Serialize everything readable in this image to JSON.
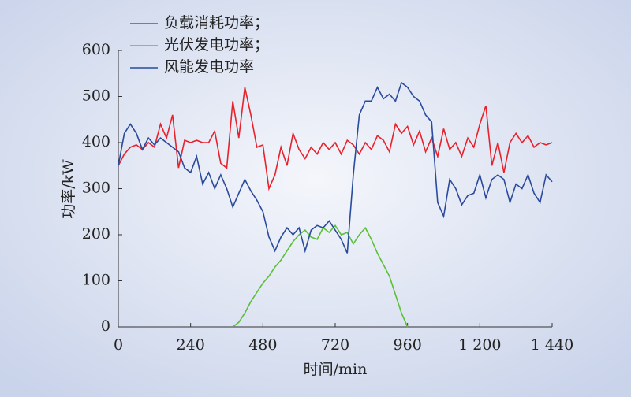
{
  "chart_data": {
    "type": "line",
    "x": [
      0,
      20,
      40,
      60,
      80,
      100,
      120,
      140,
      160,
      180,
      200,
      220,
      240,
      260,
      280,
      300,
      320,
      340,
      360,
      380,
      400,
      420,
      440,
      460,
      480,
      500,
      520,
      540,
      560,
      580,
      600,
      620,
      640,
      660,
      680,
      700,
      720,
      740,
      760,
      780,
      800,
      820,
      840,
      860,
      880,
      900,
      920,
      940,
      960,
      980,
      1000,
      1020,
      1040,
      1060,
      1080,
      1100,
      1120,
      1140,
      1160,
      1180,
      1200,
      1220,
      1240,
      1260,
      1280,
      1300,
      1320,
      1340,
      1360,
      1380,
      1400,
      1420,
      1440
    ],
    "series": [
      {
        "name": "负载消耗功率；",
        "color": "#e8212b",
        "values": [
          350,
          375,
          390,
          395,
          385,
          400,
          390,
          440,
          410,
          460,
          345,
          405,
          400,
          405,
          400,
          400,
          425,
          355,
          345,
          490,
          410,
          520,
          460,
          390,
          395,
          300,
          330,
          390,
          350,
          420,
          385,
          365,
          390,
          375,
          400,
          385,
          400,
          375,
          405,
          395,
          375,
          400,
          385,
          415,
          405,
          380,
          440,
          420,
          435,
          395,
          425,
          380,
          410,
          370,
          430,
          385,
          400,
          370,
          410,
          390,
          440,
          480,
          350,
          400,
          335,
          400,
          420,
          400,
          415,
          390,
          400,
          395,
          400
        ]
      },
      {
        "name": "光伏发电功率；",
        "color": "#5cbf3a",
        "values": [
          null,
          null,
          null,
          null,
          null,
          null,
          null,
          null,
          null,
          null,
          null,
          null,
          null,
          null,
          null,
          null,
          null,
          null,
          null,
          0,
          10,
          30,
          55,
          75,
          95,
          110,
          130,
          145,
          165,
          185,
          200,
          210,
          195,
          190,
          215,
          205,
          220,
          200,
          205,
          180,
          200,
          215,
          190,
          160,
          135,
          110,
          70,
          30,
          0,
          null,
          null,
          null,
          null,
          null,
          null,
          null,
          null,
          null,
          null,
          null,
          null,
          null,
          null,
          null,
          null,
          null,
          null,
          null,
          null,
          null,
          null,
          null,
          null
        ]
      },
      {
        "name": "风能发电功率",
        "color": "#2a4a9c",
        "values": [
          350,
          420,
          440,
          420,
          385,
          410,
          395,
          410,
          400,
          390,
          380,
          345,
          335,
          370,
          310,
          335,
          300,
          330,
          300,
          260,
          290,
          320,
          295,
          275,
          250,
          195,
          165,
          195,
          215,
          200,
          215,
          165,
          210,
          220,
          215,
          230,
          210,
          190,
          160,
          330,
          460,
          490,
          490,
          520,
          495,
          505,
          490,
          530,
          520,
          500,
          490,
          460,
          445,
          270,
          240,
          320,
          300,
          265,
          285,
          290,
          330,
          280,
          320,
          330,
          320,
          270,
          310,
          300,
          330,
          290,
          270,
          330,
          315
        ]
      }
    ],
    "xlim": [
      0,
      1440
    ],
    "xticks": [
      0,
      240,
      480,
      720,
      960,
      {
        "value": 1200,
        "label": "1 200"
      },
      {
        "value": 1440,
        "label": "1 440"
      }
    ],
    "ylim": [
      0,
      600
    ],
    "yticks": [
      0,
      100,
      200,
      300,
      400,
      500,
      600
    ],
    "xlabel": "时间/min",
    "ylabel": "功率/kW"
  }
}
